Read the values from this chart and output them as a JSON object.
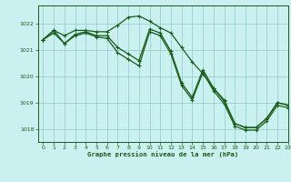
{
  "title": "Graphe pression niveau de la mer (hPa)",
  "bg_color": "#caf0f0",
  "grid_color": "#90c8c8",
  "line_color": "#1a5c1a",
  "xlim": [
    -0.5,
    23
  ],
  "ylim": [
    1017.5,
    1022.7
  ],
  "yticks": [
    1018,
    1019,
    1020,
    1021,
    1022
  ],
  "xticks": [
    0,
    1,
    2,
    3,
    4,
    5,
    6,
    7,
    8,
    9,
    10,
    11,
    12,
    13,
    14,
    15,
    16,
    17,
    18,
    19,
    20,
    21,
    22,
    23
  ],
  "line1_x": [
    0,
    1,
    2,
    3,
    4,
    5,
    6,
    7,
    8,
    9,
    10,
    11,
    12,
    13,
    14,
    15,
    16,
    17,
    18,
    19,
    20,
    21,
    22,
    23
  ],
  "line1_y": [
    1021.4,
    1021.75,
    1021.55,
    1021.75,
    1021.75,
    1021.7,
    1021.7,
    1021.95,
    1022.25,
    1022.3,
    1022.1,
    1021.85,
    1021.65,
    1021.1,
    1020.55,
    1020.1,
    1019.55,
    1019.1,
    1018.2,
    1018.05,
    1018.05,
    1018.4,
    1019.0,
    1018.9
  ],
  "line2_x": [
    0,
    1,
    2,
    3,
    4,
    5,
    6,
    7,
    8,
    9,
    10,
    11,
    12,
    13,
    14,
    15,
    16,
    17,
    18,
    19,
    20,
    21,
    22,
    23
  ],
  "line2_y": [
    1021.4,
    1021.75,
    1021.25,
    1021.6,
    1021.7,
    1021.55,
    1021.55,
    1021.1,
    1020.85,
    1020.6,
    1021.8,
    1021.65,
    1020.95,
    1019.75,
    1019.2,
    1020.25,
    1019.55,
    1019.05,
    1018.2,
    1018.05,
    1018.05,
    1018.4,
    1019.0,
    1018.9
  ],
  "line3_x": [
    0,
    1,
    2,
    3,
    4,
    5,
    6,
    7,
    8,
    9,
    10,
    11,
    12,
    13,
    14,
    15,
    16,
    17,
    18,
    19,
    20,
    21,
    22,
    23
  ],
  "line3_y": [
    1021.4,
    1021.65,
    1021.25,
    1021.55,
    1021.65,
    1021.5,
    1021.45,
    1020.9,
    1020.65,
    1020.4,
    1021.7,
    1021.55,
    1020.85,
    1019.65,
    1019.1,
    1020.15,
    1019.45,
    1018.95,
    1018.1,
    1017.95,
    1017.95,
    1018.3,
    1018.9,
    1018.8
  ]
}
